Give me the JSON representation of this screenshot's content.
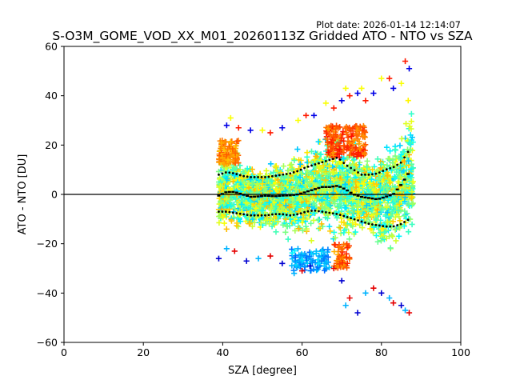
{
  "header": {
    "plot_date": "Plot date: 2026-01-14 12:14:07"
  },
  "chart_data": {
    "type": "scatter",
    "title": "S-O3M_GOME_VOD_XX_M01_20260113Z Gridded ATO - NTO vs SZA",
    "xlabel": "SZA [degree]",
    "ylabel": "ATO - NTO [DU]",
    "xlim": [
      0,
      100
    ],
    "ylim": [
      -60,
      60
    ],
    "x_ticks": [
      0,
      20,
      40,
      60,
      80,
      100
    ],
    "y_ticks": [
      -60,
      -40,
      -20,
      0,
      20,
      40,
      60
    ],
    "grid": false,
    "legend": "none",
    "marker": "+",
    "colormap": "jet",
    "reference_line_y": 0,
    "point_cloud": {
      "sza_range": [
        39,
        88
      ],
      "typical_band": [
        -22,
        22
      ],
      "upper_outliers": [
        [
          41,
          28
        ],
        [
          42,
          31
        ],
        [
          44,
          27
        ],
        [
          47,
          26
        ],
        [
          50,
          26
        ],
        [
          52,
          25
        ],
        [
          55,
          27
        ],
        [
          59,
          30
        ],
        [
          61,
          32
        ],
        [
          63,
          32
        ],
        [
          66,
          37
        ],
        [
          68,
          35
        ],
        [
          70,
          38
        ],
        [
          71,
          43
        ],
        [
          72,
          40
        ],
        [
          74,
          41
        ],
        [
          75,
          43
        ],
        [
          76,
          38
        ],
        [
          78,
          41
        ],
        [
          80,
          47
        ],
        [
          82,
          47
        ],
        [
          83,
          43
        ],
        [
          85,
          45
        ],
        [
          86,
          54
        ],
        [
          87,
          51
        ]
      ],
      "lower_outliers": [
        [
          39,
          -26
        ],
        [
          41,
          -22
        ],
        [
          43,
          -23
        ],
        [
          46,
          -27
        ],
        [
          49,
          -26
        ],
        [
          52,
          -25
        ],
        [
          55,
          -28
        ],
        [
          58,
          -32
        ],
        [
          60,
          -31
        ],
        [
          62,
          -29
        ],
        [
          66,
          -28
        ],
        [
          68,
          -30
        ],
        [
          70,
          -35
        ],
        [
          71,
          -45
        ],
        [
          72,
          -42
        ],
        [
          74,
          -48
        ],
        [
          76,
          -40
        ],
        [
          78,
          -38
        ],
        [
          80,
          -40
        ],
        [
          82,
          -42
        ],
        [
          83,
          -44
        ],
        [
          85,
          -45
        ],
        [
          86,
          -47
        ],
        [
          87,
          -48
        ]
      ]
    },
    "series": [
      {
        "role": "mean",
        "x": [
          39,
          41,
          43,
          45,
          47,
          49,
          51,
          53,
          55,
          57,
          59,
          61,
          63,
          65,
          67,
          69,
          71,
          73,
          75,
          77,
          79,
          81,
          83,
          85,
          87
        ],
        "y": [
          -0.5,
          1,
          1,
          0,
          -1,
          -0.8,
          -0.5,
          -0.8,
          -0.5,
          -0.4,
          0,
          1,
          2,
          3,
          3,
          3.5,
          2,
          0,
          -1,
          -1.5,
          -2,
          -1,
          0,
          4,
          9
        ]
      },
      {
        "role": "mean_plus_std",
        "x": [
          39,
          41,
          43,
          45,
          47,
          49,
          51,
          53,
          55,
          57,
          59,
          61,
          63,
          65,
          67,
          69,
          71,
          73,
          75,
          77,
          79,
          81,
          83,
          85,
          87
        ],
        "y": [
          8,
          9,
          8.5,
          7.5,
          7,
          7,
          7,
          7.5,
          8,
          8.5,
          9.5,
          11,
          12,
          13,
          14,
          15,
          12,
          10,
          8,
          8,
          8.5,
          10,
          11,
          13,
          18
        ]
      },
      {
        "role": "mean_minus_std",
        "x": [
          39,
          41,
          43,
          45,
          47,
          49,
          51,
          53,
          55,
          57,
          59,
          61,
          63,
          65,
          67,
          69,
          71,
          73,
          75,
          77,
          79,
          81,
          83,
          85,
          87
        ],
        "y": [
          -7,
          -7,
          -7.5,
          -8,
          -8.5,
          -8.5,
          -8.5,
          -8,
          -8,
          -8.5,
          -8,
          -7,
          -6.5,
          -7,
          -7.5,
          -8,
          -9,
          -10,
          -11,
          -12,
          -12.5,
          -13,
          -13,
          -12,
          -10
        ]
      }
    ]
  }
}
